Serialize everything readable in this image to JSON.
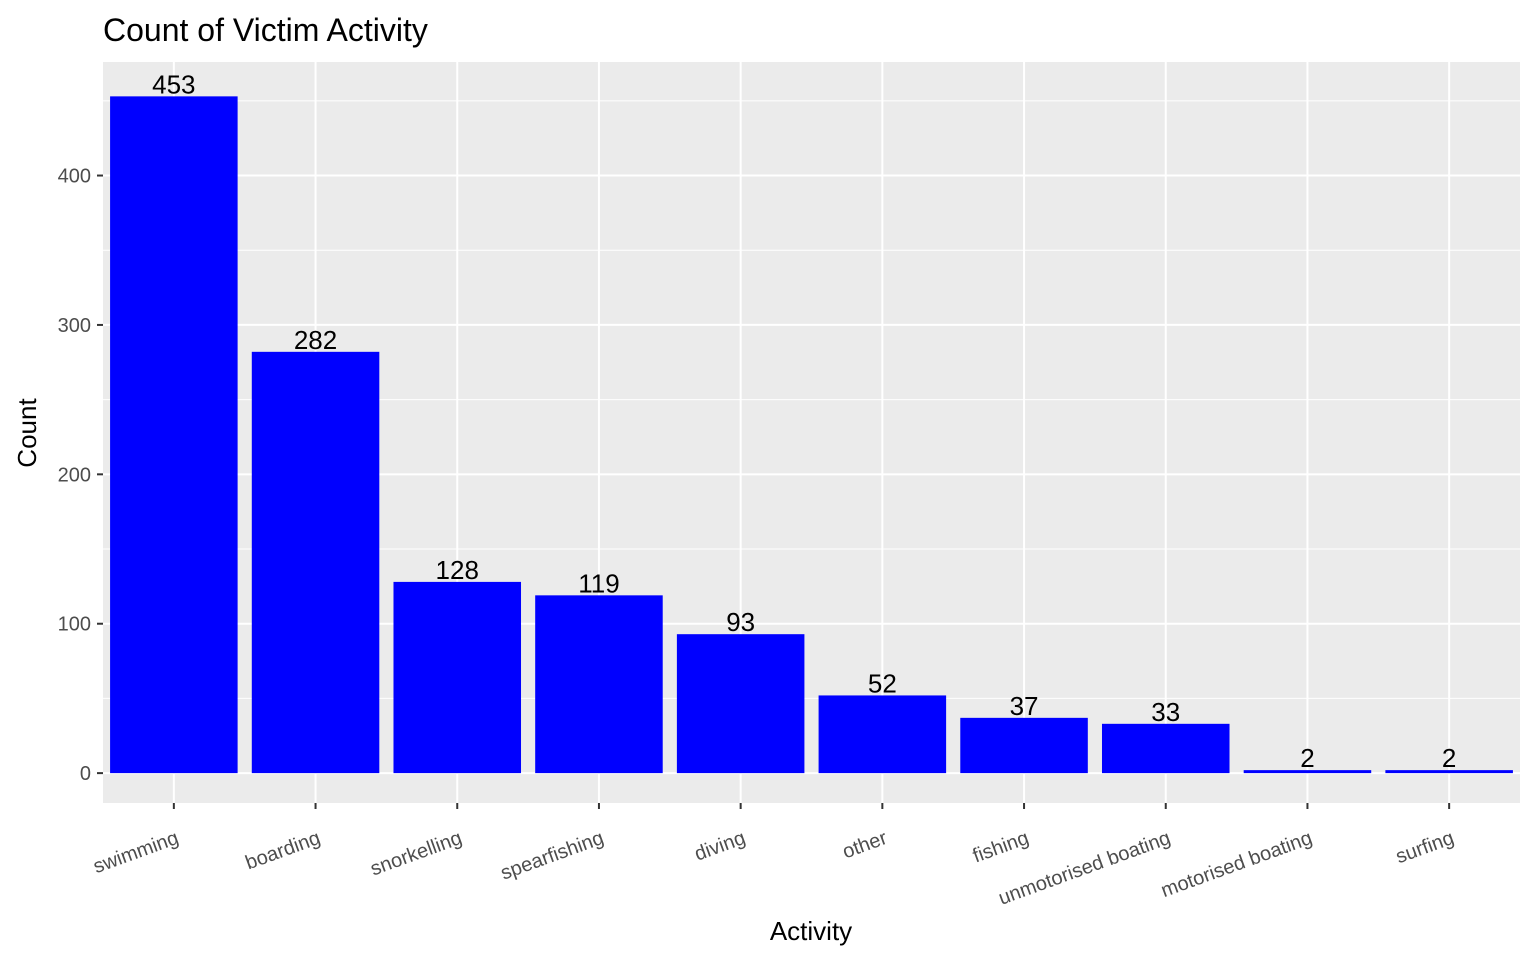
{
  "chart_data": {
    "type": "bar",
    "title": "Count of Victim Activity",
    "xlabel": "Activity",
    "ylabel": "Count",
    "categories": [
      "swimming",
      "boarding",
      "snorkelling",
      "spearfishing",
      "diving",
      "other",
      "fishing",
      "unmotorised boating",
      "motorised boating",
      "surfing"
    ],
    "values": [
      453,
      282,
      128,
      119,
      93,
      52,
      37,
      33,
      2,
      2
    ],
    "ylim": [
      -20,
      476
    ],
    "yticks": [
      0,
      100,
      200,
      300,
      400
    ],
    "grid": true,
    "legend": "none",
    "bar_color": "#0000FF",
    "panel_background": "#EBEBEB",
    "gridline_color": "#FFFFFF"
  }
}
